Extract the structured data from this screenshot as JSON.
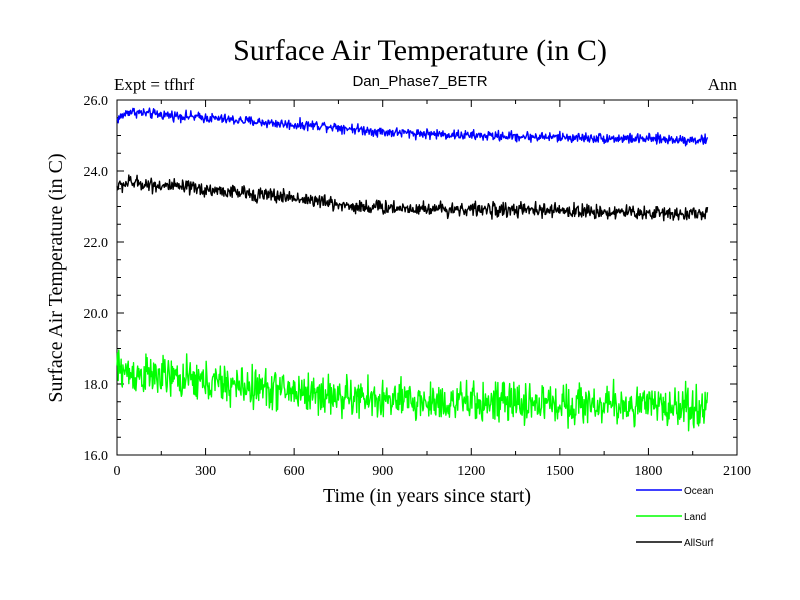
{
  "chart_data": {
    "type": "line",
    "title": "Surface Air Temperature (in C)",
    "subtitle": "Dan_Phase7_BETR",
    "left_label": "Expt = tfhrf",
    "right_label": "Ann",
    "xlabel": "Time (in years since start)",
    "ylabel": "Surface Air Temperature (in C)",
    "xlim": [
      0,
      2100
    ],
    "ylim": [
      16.0,
      26.0
    ],
    "x_ticks": [
      0,
      300,
      600,
      900,
      1200,
      1500,
      1800,
      2100
    ],
    "x_tick_labels": [
      "0",
      "300",
      "600",
      "900",
      "1200",
      "1500",
      "1800",
      "2100"
    ],
    "y_ticks": [
      16,
      18,
      20,
      22,
      24,
      26
    ],
    "y_tick_labels": [
      "16.0",
      "18.0",
      "20.0",
      "22.0",
      "24.0",
      "26.0"
    ],
    "x_range": [
      0,
      2000
    ],
    "legend_position": "bottom-right, below plot",
    "series": [
      {
        "name": "Ocean",
        "color": "#0000ff",
        "noise": 0.07,
        "anchors": [
          [
            0,
            25.45
          ],
          [
            40,
            25.68
          ],
          [
            100,
            25.62
          ],
          [
            300,
            25.5
          ],
          [
            600,
            25.3
          ],
          [
            700,
            25.28
          ],
          [
            900,
            25.1
          ],
          [
            1200,
            25.0
          ],
          [
            1500,
            24.95
          ],
          [
            1800,
            24.9
          ],
          [
            2000,
            24.87
          ]
        ]
      },
      {
        "name": "Land",
        "color": "#00ff00",
        "noise": 0.28,
        "anchors": [
          [
            0,
            18.45
          ],
          [
            40,
            18.3
          ],
          [
            200,
            18.15
          ],
          [
            400,
            17.95
          ],
          [
            600,
            17.8
          ],
          [
            800,
            17.6
          ],
          [
            1000,
            17.5
          ],
          [
            1200,
            17.48
          ],
          [
            1500,
            17.45
          ],
          [
            1800,
            17.38
          ],
          [
            2000,
            17.35
          ]
        ]
      },
      {
        "name": "AllSurf",
        "color": "#000000",
        "noise": 0.1,
        "anchors": [
          [
            0,
            23.55
          ],
          [
            40,
            23.68
          ],
          [
            200,
            23.55
          ],
          [
            400,
            23.4
          ],
          [
            600,
            23.25
          ],
          [
            800,
            23.0
          ],
          [
            1000,
            22.95
          ],
          [
            1200,
            22.92
          ],
          [
            1500,
            22.88
          ],
          [
            1800,
            22.82
          ],
          [
            2000,
            22.8
          ]
        ]
      }
    ]
  }
}
